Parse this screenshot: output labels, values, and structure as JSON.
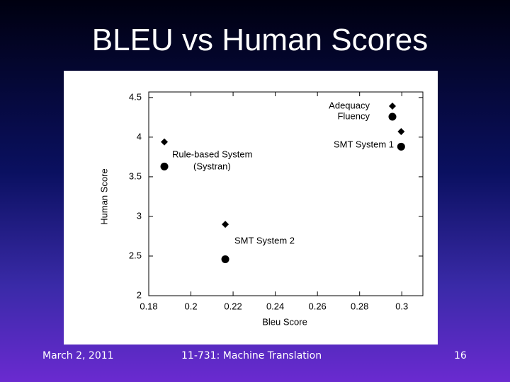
{
  "title": "BLEU vs Human Scores",
  "footer": {
    "date": "March 2, 2011",
    "course": "11-731: Machine Translation",
    "page": "16"
  },
  "chart_data": {
    "type": "scatter",
    "xlabel": "Bleu Score",
    "ylabel": "Human Score",
    "xlim": [
      0.18,
      0.31
    ],
    "ylim": [
      2,
      4.57
    ],
    "xticks": [
      0.18,
      0.2,
      0.22,
      0.24,
      0.26,
      0.28,
      0.3
    ],
    "yticks": [
      2,
      2.5,
      3,
      3.5,
      4,
      4.5
    ],
    "legend": "upper right",
    "grid": false,
    "series": [
      {
        "name": "Adequacy",
        "color": "#000000",
        "marker": "diamond",
        "x": [
          0.1874,
          0.2163,
          0.2997
        ],
        "values": [
          3.94,
          2.9,
          4.07
        ]
      },
      {
        "name": "Fluency",
        "color": "#000000",
        "marker": "circle",
        "x": [
          0.1874,
          0.2163,
          0.2997
        ],
        "values": [
          3.63,
          2.46,
          3.88
        ]
      }
    ],
    "annotations": [
      "Rule-based System",
      "(Systran)",
      "SMT System 1",
      "SMT System 2"
    ]
  }
}
